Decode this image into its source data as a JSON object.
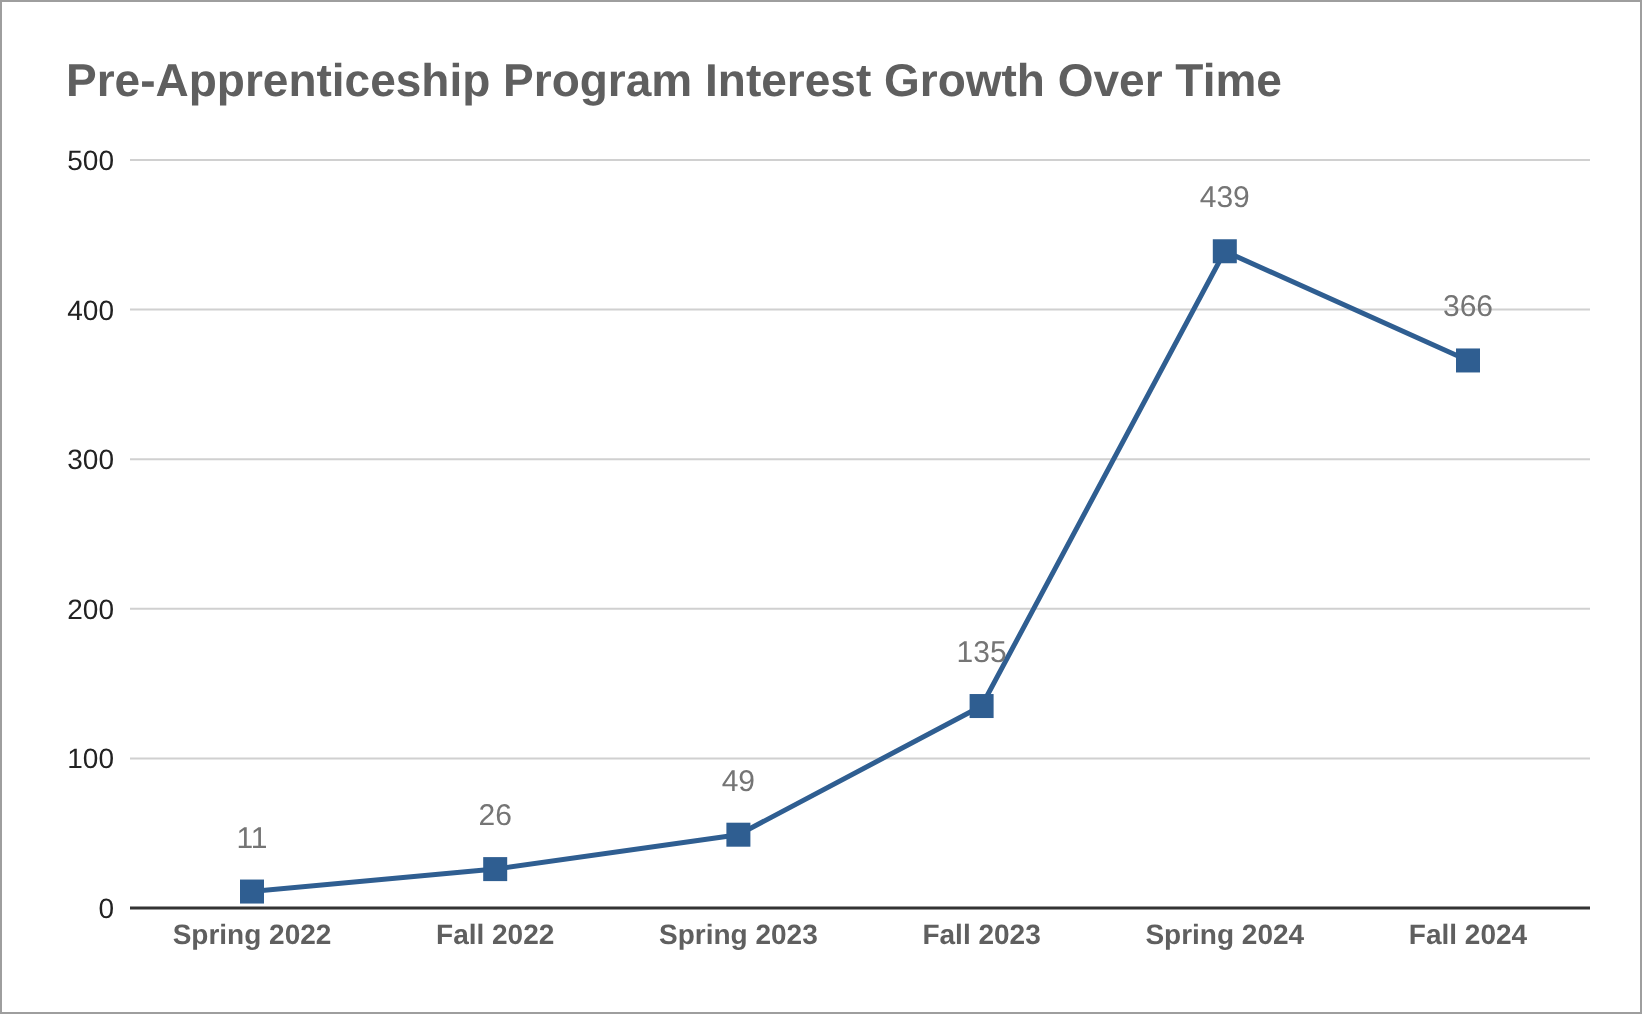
{
  "chart_data": {
    "type": "line",
    "title": "Pre-Apprenticeship Program Interest Growth Over Time",
    "categories": [
      "Spring 2022",
      "Fall 2022",
      "Spring 2023",
      "Fall 2023",
      "Spring 2024",
      "Fall 2024"
    ],
    "series": [
      {
        "color": "#2f5e91",
        "values": [
          11,
          26,
          49,
          135,
          439,
          366
        ]
      }
    ],
    "ylim": [
      0,
      500
    ],
    "yticks": [
      0,
      100,
      200,
      300,
      400,
      500
    ],
    "grid": "y",
    "legend": false,
    "marker": "square",
    "line_style": "solid",
    "data_labels": true
  }
}
